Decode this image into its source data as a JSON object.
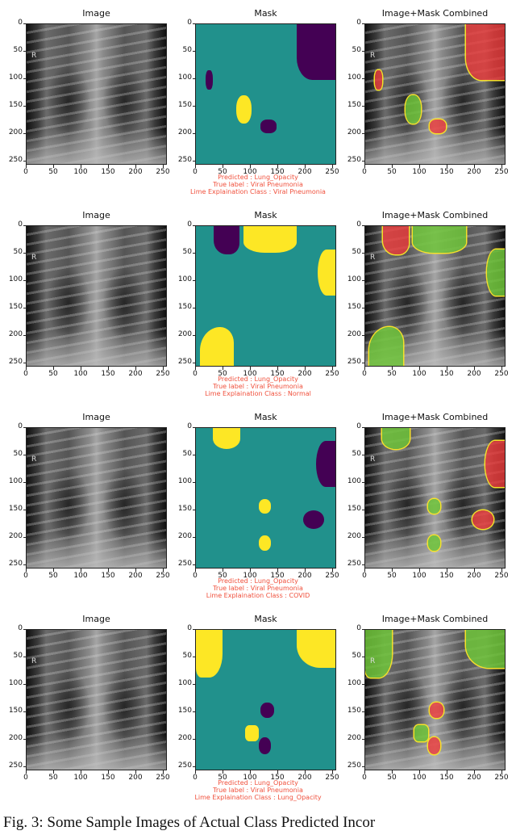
{
  "figure": {
    "panel_titles": [
      "Image",
      "Mask",
      "Image+Mask Combined"
    ],
    "axis_ticks": [
      "0",
      "50",
      "100",
      "150",
      "200",
      "250"
    ],
    "orientation_marker": "R",
    "colors": {
      "mask_background": "#21918c",
      "mask_positive": "#fde725",
      "mask_negative": "#440154",
      "overlay_green": "#6fc43a",
      "overlay_red": "#ee3b3b",
      "label_text": "#f0503c"
    },
    "rows": [
      {
        "predicted": "Predicted : Lung_Opacity",
        "true_label": "True label : Viral Pneumonia",
        "lime_class": "Lime Explaination Class : Viral Pneumonia"
      },
      {
        "predicted": "Predicted : Lung_Opacity",
        "true_label": "True label : Viral Pneumonia",
        "lime_class": "Lime Explaination Class : Normal"
      },
      {
        "predicted": "Predicted : Lung_Opacity",
        "true_label": "True label : Viral Pneumonia",
        "lime_class": "Lime Explaination Class : COVID"
      },
      {
        "predicted": "Predicted : Lung_Opacity",
        "true_label": "True label : Viral Pneumonia",
        "lime_class": "Lime Explaination Class : Lung_Opacity"
      }
    ]
  },
  "caption": "Fig. 3: Some Sample Images of Actual Class Predicted Incor"
}
